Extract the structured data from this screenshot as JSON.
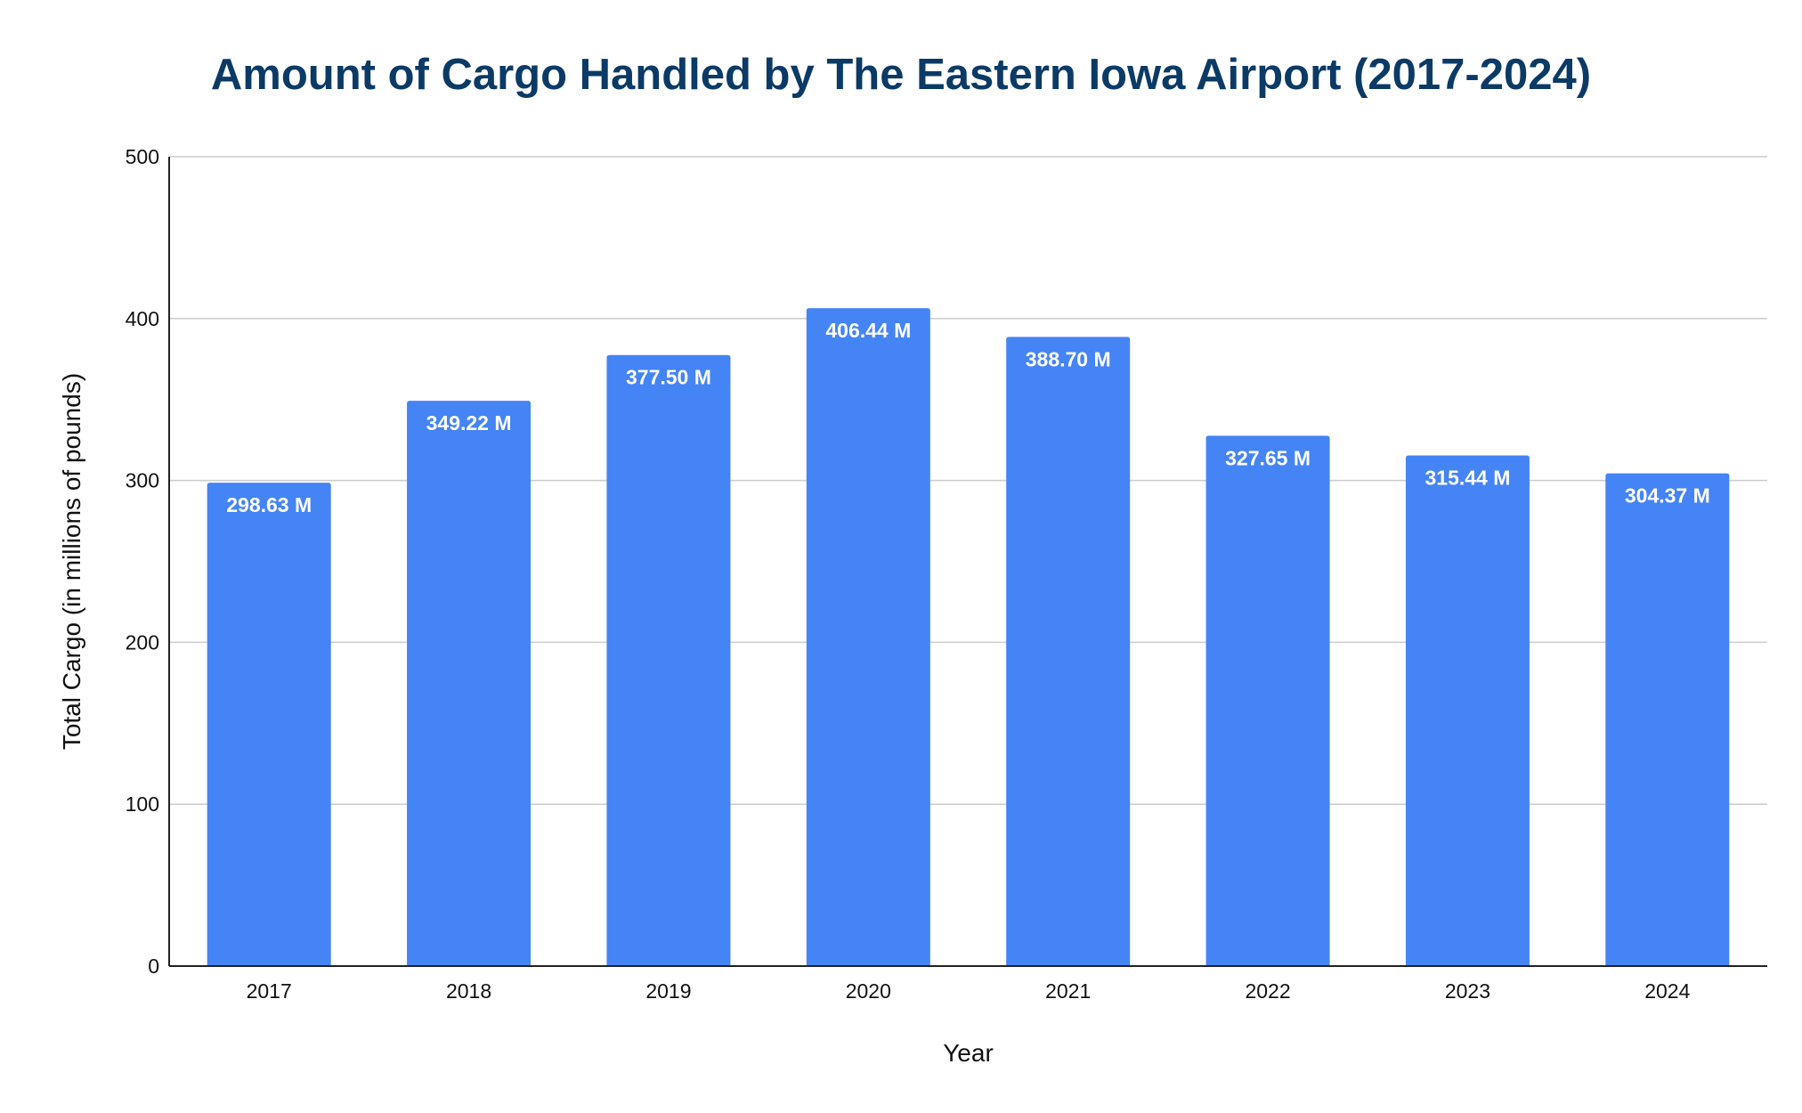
{
  "chart_data": {
    "type": "bar",
    "title": "Amount of Cargo Handled by The Eastern Iowa Airport (2017-2024)",
    "xlabel": "Year",
    "ylabel": "Total Cargo (in millions of pounds)",
    "categories": [
      "2017",
      "2018",
      "2019",
      "2020",
      "2021",
      "2022",
      "2023",
      "2024"
    ],
    "values": [
      298.63,
      349.22,
      377.5,
      406.44,
      388.7,
      327.65,
      315.44,
      304.37
    ],
    "data_labels": [
      "298.63 M",
      "349.22 M",
      "377.50 M",
      "406.44 M",
      "388.70 M",
      "327.65 M",
      "315.44 M",
      "304.37 M"
    ],
    "ylim": [
      0,
      500
    ],
    "yticks": [
      0,
      100,
      200,
      300,
      400,
      500
    ],
    "ytick_labels": [
      "0",
      "100",
      "200",
      "300",
      "400",
      "500"
    ],
    "grid": true,
    "legend": "none",
    "colors": {
      "bar": "#4584f4",
      "title": "#0b3a66",
      "grid": "#cccccc",
      "axis": "#222222"
    }
  }
}
